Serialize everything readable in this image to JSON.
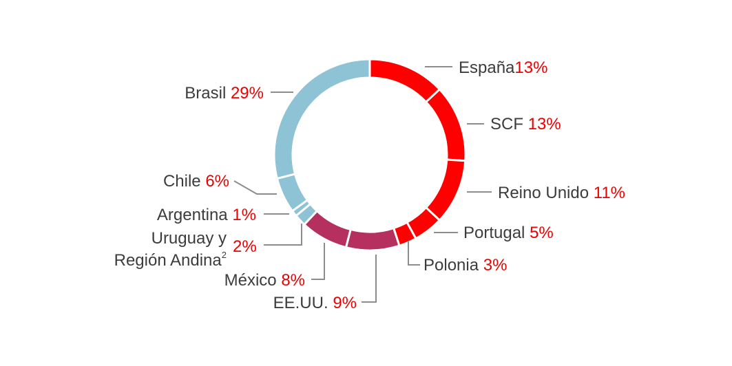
{
  "chart_data": {
    "type": "pie",
    "variant": "donut",
    "title": "",
    "slices": [
      {
        "name": "España",
        "value": 13,
        "value_label": "13%",
        "color": "#ff0000"
      },
      {
        "name": "SCF",
        "value": 13,
        "value_label": "13%",
        "color": "#ff0000"
      },
      {
        "name": "Reino Unido",
        "value": 11,
        "value_label": "11%",
        "color": "#ff0000"
      },
      {
        "name": "Portugal",
        "value": 5,
        "value_label": "5%",
        "color": "#ff0000"
      },
      {
        "name": "Polonia",
        "value": 3,
        "value_label": "3%",
        "color": "#ff0000"
      },
      {
        "name": "EE.UU.",
        "value": 9,
        "value_label": "9%",
        "color": "#b5305f"
      },
      {
        "name": "México",
        "value": 8,
        "value_label": "8%",
        "color": "#b5305f"
      },
      {
        "name": "Uruguay y Región Andina",
        "name_line1": "Uruguay y",
        "name_line2": "Región Andina",
        "footnote": "2",
        "value": 2,
        "value_label": "2%",
        "color": "#8ec3d5"
      },
      {
        "name": "Argentina",
        "value": 1,
        "value_label": "1%",
        "color": "#8ec3d5"
      },
      {
        "name": "Chile",
        "value": 6,
        "value_label": "6%",
        "color": "#8ec3d5"
      },
      {
        "name": "Brasil",
        "value": 29,
        "value_label": "29%",
        "color": "#8ec3d5"
      }
    ]
  },
  "labels": {
    "espana": {
      "name": "España",
      "pct": "13%"
    },
    "scf": {
      "name": "SCF ",
      "pct": "13%"
    },
    "reino_unido": {
      "name": "Reino Unido ",
      "pct": "11%"
    },
    "portugal": {
      "name": "Portugal ",
      "pct": "5%"
    },
    "polonia": {
      "name": "Polonia ",
      "pct": "3%"
    },
    "eeuu": {
      "name": "EE.UU. ",
      "pct": "9%"
    },
    "mexico": {
      "name": "México ",
      "pct": "8%"
    },
    "uruguay": {
      "line1": "Uruguay y",
      "line2": "Región Andina",
      "sup": "2",
      "pct": "2%"
    },
    "argentina": {
      "name": "Argentina ",
      "pct": "1%"
    },
    "chile": {
      "name": "Chile ",
      "pct": "6%"
    },
    "brasil": {
      "name": "Brasil ",
      "pct": "29%"
    }
  }
}
